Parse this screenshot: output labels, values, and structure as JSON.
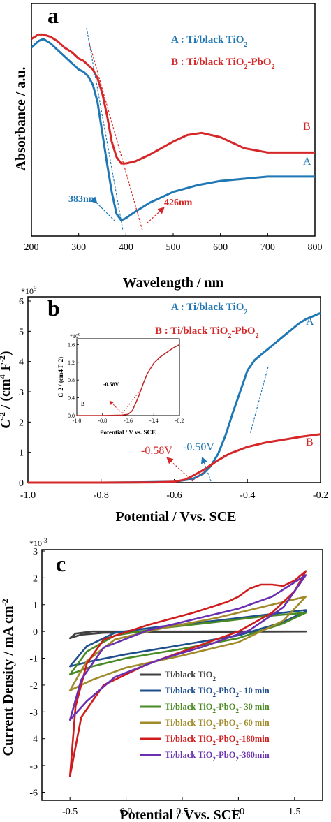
{
  "colors": {
    "blue": "#1f77b4",
    "red": "#d62728",
    "dark": "#404040",
    "navy": "#1f4e8c",
    "green": "#4a8a24",
    "olive": "#a08a2a",
    "crimson": "#d01c1c",
    "purple": "#6a2fb0"
  },
  "chart_data": [
    {
      "panel": "a",
      "type": "line",
      "xlabel": "Wavelength / nm",
      "ylabel": "Absorbance / a.u.",
      "xlim": [
        200,
        800
      ],
      "xticks": [
        "200",
        "300",
        "400",
        "500",
        "600",
        "700",
        "800"
      ],
      "ylim": [
        0,
        1
      ],
      "y_ticks_labeled": false,
      "legend": [
        {
          "prefix": "A : Ti/black TiO",
          "sub": "2",
          "suffix": "",
          "sub2": ""
        },
        {
          "prefix": "B : Ti/black TiO",
          "sub": "2",
          "suffix": "-PbO",
          "sub2": "2"
        }
      ],
      "curve_labels": [
        "A",
        "B"
      ],
      "annotations": [
        "383nm",
        "426nm"
      ],
      "series": [
        {
          "name": "A",
          "color": "#1f77b4",
          "x": [
            200,
            215,
            225,
            240,
            255,
            270,
            285,
            300,
            310,
            320,
            330,
            340,
            350,
            360,
            370,
            380,
            390,
            400,
            420,
            450,
            500,
            550,
            600,
            650,
            700,
            750,
            800
          ],
          "y": [
            0.83,
            0.86,
            0.87,
            0.85,
            0.82,
            0.79,
            0.76,
            0.73,
            0.72,
            0.7,
            0.66,
            0.58,
            0.44,
            0.3,
            0.17,
            0.07,
            0.04,
            0.05,
            0.08,
            0.12,
            0.17,
            0.2,
            0.22,
            0.23,
            0.24,
            0.24,
            0.24
          ]
        },
        {
          "name": "B",
          "color": "#d62728",
          "x": [
            200,
            215,
            225,
            240,
            255,
            270,
            285,
            300,
            310,
            320,
            330,
            340,
            350,
            360,
            370,
            380,
            390,
            400,
            420,
            450,
            500,
            530,
            560,
            600,
            650,
            700,
            750,
            800
          ],
          "y": [
            0.87,
            0.89,
            0.89,
            0.88,
            0.86,
            0.83,
            0.81,
            0.78,
            0.77,
            0.75,
            0.73,
            0.69,
            0.62,
            0.52,
            0.4,
            0.33,
            0.3,
            0.3,
            0.31,
            0.34,
            0.4,
            0.43,
            0.44,
            0.42,
            0.37,
            0.35,
            0.35,
            0.35
          ]
        }
      ]
    },
    {
      "panel": "b",
      "type": "line",
      "xlabel": "Potential / Vvs. SCE",
      "ylabel": "C-2 / (cm4 F-2)",
      "ylabel_parts": [
        "C",
        "-2",
        " / (cm",
        "4",
        " F",
        "-2",
        ")"
      ],
      "exponent_label": "*10",
      "exponent_power": "9",
      "xlim": [
        -1.0,
        -0.2
      ],
      "xticks": [
        "-1.0",
        "-0.8",
        "-0.6",
        "-0.4",
        "-0.2"
      ],
      "ylim": [
        0,
        6
      ],
      "yticks": [
        "0",
        "1",
        "2",
        "3",
        "4",
        "5",
        "6"
      ],
      "legend": [
        {
          "prefix": "A : Ti/black TiO",
          "sub": "2",
          "suffix": "",
          "sub2": ""
        },
        {
          "prefix": "B : Ti/black TiO",
          "sub": "2",
          "suffix": "-PbO",
          "sub2": "2"
        }
      ],
      "curve_labels": [
        "A",
        "B"
      ],
      "annotations": [
        "-0.58V",
        "-0.50V"
      ],
      "series": [
        {
          "name": "A",
          "color": "#1f77b4",
          "x": [
            -1.0,
            -0.8,
            -0.7,
            -0.6,
            -0.55,
            -0.52,
            -0.5,
            -0.48,
            -0.46,
            -0.44,
            -0.42,
            -0.4,
            -0.38,
            -0.36,
            -0.34,
            -0.32,
            -0.3,
            -0.28,
            -0.26,
            -0.24,
            -0.22,
            -0.2
          ],
          "y": [
            0.0,
            0.0,
            0.01,
            0.03,
            0.12,
            0.3,
            0.55,
            0.95,
            1.55,
            2.3,
            3.0,
            3.7,
            4.05,
            4.25,
            4.45,
            4.65,
            4.85,
            5.05,
            5.25,
            5.4,
            5.5,
            5.6
          ]
        },
        {
          "name": "B",
          "color": "#d62728",
          "x": [
            -1.0,
            -0.8,
            -0.65,
            -0.6,
            -0.57,
            -0.55,
            -0.52,
            -0.5,
            -0.48,
            -0.45,
            -0.4,
            -0.35,
            -0.3,
            -0.25,
            -0.2
          ],
          "y": [
            0.0,
            0.0,
            0.01,
            0.03,
            0.1,
            0.22,
            0.42,
            0.58,
            0.74,
            0.95,
            1.18,
            1.32,
            1.42,
            1.52,
            1.6
          ]
        }
      ],
      "inset": {
        "xlabel": "Potential / V vs. SCE",
        "ylabel": "C-2 / (cm4 F-2)",
        "exponent_label": "*10",
        "exponent_power": "9",
        "xticks": [
          "-1.0",
          "-0.8",
          "-0.6",
          "-0.4",
          "-0.2"
        ],
        "yticks": [
          "0.0",
          "0.4",
          "0.8",
          "1.2",
          "1.6"
        ],
        "curve_label": "B",
        "annotation": "-0.58V",
        "series": {
          "name": "B",
          "color": "#c0282a",
          "x": [
            -1.0,
            -0.8,
            -0.65,
            -0.6,
            -0.57,
            -0.55,
            -0.52,
            -0.5,
            -0.48,
            -0.45,
            -0.4,
            -0.35,
            -0.3,
            -0.25,
            -0.2
          ],
          "y": [
            0.0,
            0.0,
            0.01,
            0.03,
            0.1,
            0.22,
            0.42,
            0.58,
            0.74,
            0.95,
            1.18,
            1.32,
            1.42,
            1.52,
            1.6
          ]
        }
      }
    },
    {
      "panel": "c",
      "type": "line",
      "xlabel": "Potential / Vvs. SCE",
      "ylabel": "Current Density / mA cm-2",
      "ylabel_parts": [
        "Current Density / mA cm",
        "-2"
      ],
      "exponent_label": "*10",
      "exponent_power": "-3",
      "xlim": [
        -0.75,
        1.75
      ],
      "xticks": [
        "-0.5",
        "0.0",
        "0.5",
        "1.0",
        "1.5"
      ],
      "ylim": [
        -6,
        3
      ],
      "yticks": [
        "3",
        "2",
        "1",
        "0",
        "-1",
        "-2",
        "-3",
        "-4",
        "-5",
        "-6"
      ],
      "legend_title": "",
      "series": [
        {
          "name": "Ti/black TiO2",
          "label_parts": [
            "Ti/black TiO",
            "2",
            "",
            "",
            ""
          ],
          "color": "#404040",
          "upper": [
            [
              -0.5,
              -0.25
            ],
            [
              -0.45,
              -0.08
            ],
            [
              -0.3,
              0.0
            ],
            [
              0.0,
              0.0
            ],
            [
              0.5,
              0.0
            ],
            [
              1.0,
              0.0
            ],
            [
              1.3,
              0.0
            ],
            [
              1.5,
              0.0
            ],
            [
              1.6,
              0.0
            ]
          ],
          "lower": [
            [
              -0.5,
              -0.25
            ],
            [
              -0.4,
              -0.12
            ],
            [
              -0.2,
              -0.05
            ],
            [
              0.5,
              -0.02
            ],
            [
              1.6,
              0.0
            ]
          ]
        },
        {
          "name": "Ti/black TiO2-PbO2- 10 min",
          "label_parts": [
            "Ti/black TiO",
            "2",
            "-PbO",
            "2",
            "- 10 min"
          ],
          "color": "#1f4e8c",
          "upper": [
            [
              -0.5,
              -1.3
            ],
            [
              -0.35,
              -0.55
            ],
            [
              -0.1,
              -0.05
            ],
            [
              0.3,
              0.18
            ],
            [
              0.8,
              0.4
            ],
            [
              1.2,
              0.6
            ],
            [
              1.6,
              0.8
            ]
          ],
          "lower": [
            [
              -0.5,
              -1.3
            ],
            [
              -0.3,
              -1.1
            ],
            [
              0.0,
              -0.85
            ],
            [
              0.5,
              -0.5
            ],
            [
              1.0,
              -0.15
            ],
            [
              1.4,
              0.35
            ],
            [
              1.6,
              0.75
            ]
          ]
        },
        {
          "name": "Ti/black TiO2-PbO2- 30 min",
          "label_parts": [
            "Ti/black TiO",
            "2",
            "-PbO",
            "2",
            "- 30 min"
          ],
          "color": "#4a8a24",
          "upper": [
            [
              -0.5,
              -1.6
            ],
            [
              -0.35,
              -0.75
            ],
            [
              -0.1,
              -0.15
            ],
            [
              0.3,
              0.12
            ],
            [
              0.8,
              0.35
            ],
            [
              1.2,
              0.55
            ],
            [
              1.6,
              0.7
            ]
          ],
          "lower": [
            [
              -0.5,
              -1.6
            ],
            [
              -0.3,
              -1.3
            ],
            [
              0.0,
              -1.0
            ],
            [
              0.5,
              -0.65
            ],
            [
              1.0,
              -0.25
            ],
            [
              1.4,
              0.3
            ],
            [
              1.6,
              0.7
            ]
          ]
        },
        {
          "name": "Ti/black TiO2-PbO2- 60 min",
          "label_parts": [
            "Ti/black TiO",
            "2",
            "-PbO",
            "2",
            "- 60 min"
          ],
          "color": "#a08a2a",
          "upper": [
            [
              -0.5,
              -2.2
            ],
            [
              -0.35,
              -1.1
            ],
            [
              -0.1,
              -0.3
            ],
            [
              0.3,
              0.1
            ],
            [
              0.8,
              0.5
            ],
            [
              1.2,
              0.9
            ],
            [
              1.6,
              1.3
            ]
          ],
          "lower": [
            [
              -0.5,
              -2.2
            ],
            [
              -0.3,
              -1.8
            ],
            [
              0.0,
              -1.35
            ],
            [
              0.5,
              -0.9
            ],
            [
              1.0,
              -0.4
            ],
            [
              1.4,
              0.4
            ],
            [
              1.6,
              1.3
            ]
          ]
        },
        {
          "name": "Ti/black TiO2-PbO2-180min",
          "label_parts": [
            "Ti/black TiO",
            "2",
            "-PbO",
            "2",
            "-180min"
          ],
          "color": "#d01c1c",
          "upper": [
            [
              -0.5,
              -5.4
            ],
            [
              -0.45,
              -2.8
            ],
            [
              -0.35,
              -1.2
            ],
            [
              -0.2,
              -0.3
            ],
            [
              0.2,
              0.25
            ],
            [
              0.6,
              0.7
            ],
            [
              0.9,
              1.1
            ],
            [
              1.0,
              1.3
            ],
            [
              1.1,
              1.6
            ],
            [
              1.2,
              1.75
            ],
            [
              1.3,
              1.75
            ],
            [
              1.4,
              1.7
            ],
            [
              1.5,
              1.9
            ],
            [
              1.6,
              2.25
            ]
          ],
          "lower": [
            [
              -0.5,
              -5.4
            ],
            [
              -0.4,
              -3.2
            ],
            [
              -0.2,
              -2.0
            ],
            [
              0.2,
              -1.2
            ],
            [
              0.6,
              -0.6
            ],
            [
              1.0,
              0.0
            ],
            [
              1.3,
              0.7
            ],
            [
              1.5,
              1.5
            ],
            [
              1.6,
              2.25
            ]
          ]
        },
        {
          "name": "Ti/black TiO2-PbO2-360min",
          "label_parts": [
            "Ti/black TiO",
            "2",
            "-PbO",
            "2",
            "-360min"
          ],
          "color": "#6a2fb0",
          "upper": [
            [
              -0.5,
              -3.3
            ],
            [
              -0.4,
              -1.8
            ],
            [
              -0.2,
              -0.6
            ],
            [
              0.2,
              0.05
            ],
            [
              0.6,
              0.45
            ],
            [
              1.0,
              0.85
            ],
            [
              1.3,
              1.3
            ],
            [
              1.6,
              2.1
            ]
          ],
          "lower": [
            [
              -0.5,
              -3.3
            ],
            [
              -0.35,
              -2.6
            ],
            [
              -0.1,
              -1.7
            ],
            [
              0.3,
              -1.05
            ],
            [
              0.7,
              -0.55
            ],
            [
              1.1,
              0.05
            ],
            [
              1.4,
              0.9
            ],
            [
              1.6,
              2.1
            ]
          ]
        }
      ]
    }
  ]
}
